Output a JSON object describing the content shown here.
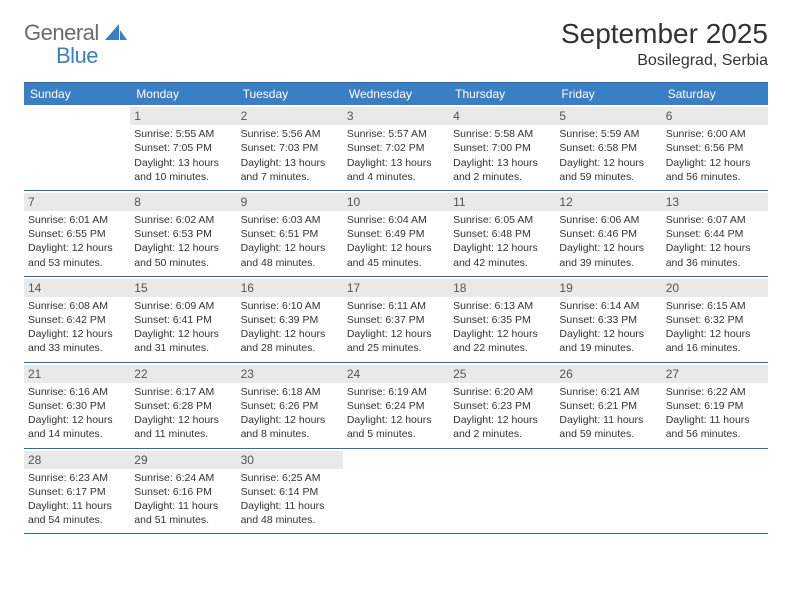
{
  "brand": {
    "text1": "General",
    "text2": "Blue"
  },
  "title": "September 2025",
  "location": "Bosilegrad, Serbia",
  "colors": {
    "header_bg": "#3a7fc4",
    "header_text": "#ffffff",
    "border": "#2e6da4",
    "daynum_bg": "#e9e9e9",
    "body_text": "#333333",
    "logo_gray": "#6b6b6b",
    "logo_blue": "#3a7fc4",
    "page_bg": "#ffffff"
  },
  "typography": {
    "title_fontsize": 28,
    "location_fontsize": 16,
    "weekday_fontsize": 12,
    "cell_fontsize": 10.5,
    "logo_fontsize": 22
  },
  "weekdays": [
    "Sunday",
    "Monday",
    "Tuesday",
    "Wednesday",
    "Thursday",
    "Friday",
    "Saturday"
  ],
  "weeks": [
    [
      {
        "n": "",
        "sunrise": "",
        "sunset": "",
        "daylight": ""
      },
      {
        "n": "1",
        "sunrise": "Sunrise: 5:55 AM",
        "sunset": "Sunset: 7:05 PM",
        "daylight": "Daylight: 13 hours and 10 minutes."
      },
      {
        "n": "2",
        "sunrise": "Sunrise: 5:56 AM",
        "sunset": "Sunset: 7:03 PM",
        "daylight": "Daylight: 13 hours and 7 minutes."
      },
      {
        "n": "3",
        "sunrise": "Sunrise: 5:57 AM",
        "sunset": "Sunset: 7:02 PM",
        "daylight": "Daylight: 13 hours and 4 minutes."
      },
      {
        "n": "4",
        "sunrise": "Sunrise: 5:58 AM",
        "sunset": "Sunset: 7:00 PM",
        "daylight": "Daylight: 13 hours and 2 minutes."
      },
      {
        "n": "5",
        "sunrise": "Sunrise: 5:59 AM",
        "sunset": "Sunset: 6:58 PM",
        "daylight": "Daylight: 12 hours and 59 minutes."
      },
      {
        "n": "6",
        "sunrise": "Sunrise: 6:00 AM",
        "sunset": "Sunset: 6:56 PM",
        "daylight": "Daylight: 12 hours and 56 minutes."
      }
    ],
    [
      {
        "n": "7",
        "sunrise": "Sunrise: 6:01 AM",
        "sunset": "Sunset: 6:55 PM",
        "daylight": "Daylight: 12 hours and 53 minutes."
      },
      {
        "n": "8",
        "sunrise": "Sunrise: 6:02 AM",
        "sunset": "Sunset: 6:53 PM",
        "daylight": "Daylight: 12 hours and 50 minutes."
      },
      {
        "n": "9",
        "sunrise": "Sunrise: 6:03 AM",
        "sunset": "Sunset: 6:51 PM",
        "daylight": "Daylight: 12 hours and 48 minutes."
      },
      {
        "n": "10",
        "sunrise": "Sunrise: 6:04 AM",
        "sunset": "Sunset: 6:49 PM",
        "daylight": "Daylight: 12 hours and 45 minutes."
      },
      {
        "n": "11",
        "sunrise": "Sunrise: 6:05 AM",
        "sunset": "Sunset: 6:48 PM",
        "daylight": "Daylight: 12 hours and 42 minutes."
      },
      {
        "n": "12",
        "sunrise": "Sunrise: 6:06 AM",
        "sunset": "Sunset: 6:46 PM",
        "daylight": "Daylight: 12 hours and 39 minutes."
      },
      {
        "n": "13",
        "sunrise": "Sunrise: 6:07 AM",
        "sunset": "Sunset: 6:44 PM",
        "daylight": "Daylight: 12 hours and 36 minutes."
      }
    ],
    [
      {
        "n": "14",
        "sunrise": "Sunrise: 6:08 AM",
        "sunset": "Sunset: 6:42 PM",
        "daylight": "Daylight: 12 hours and 33 minutes."
      },
      {
        "n": "15",
        "sunrise": "Sunrise: 6:09 AM",
        "sunset": "Sunset: 6:41 PM",
        "daylight": "Daylight: 12 hours and 31 minutes."
      },
      {
        "n": "16",
        "sunrise": "Sunrise: 6:10 AM",
        "sunset": "Sunset: 6:39 PM",
        "daylight": "Daylight: 12 hours and 28 minutes."
      },
      {
        "n": "17",
        "sunrise": "Sunrise: 6:11 AM",
        "sunset": "Sunset: 6:37 PM",
        "daylight": "Daylight: 12 hours and 25 minutes."
      },
      {
        "n": "18",
        "sunrise": "Sunrise: 6:13 AM",
        "sunset": "Sunset: 6:35 PM",
        "daylight": "Daylight: 12 hours and 22 minutes."
      },
      {
        "n": "19",
        "sunrise": "Sunrise: 6:14 AM",
        "sunset": "Sunset: 6:33 PM",
        "daylight": "Daylight: 12 hours and 19 minutes."
      },
      {
        "n": "20",
        "sunrise": "Sunrise: 6:15 AM",
        "sunset": "Sunset: 6:32 PM",
        "daylight": "Daylight: 12 hours and 16 minutes."
      }
    ],
    [
      {
        "n": "21",
        "sunrise": "Sunrise: 6:16 AM",
        "sunset": "Sunset: 6:30 PM",
        "daylight": "Daylight: 12 hours and 14 minutes."
      },
      {
        "n": "22",
        "sunrise": "Sunrise: 6:17 AM",
        "sunset": "Sunset: 6:28 PM",
        "daylight": "Daylight: 12 hours and 11 minutes."
      },
      {
        "n": "23",
        "sunrise": "Sunrise: 6:18 AM",
        "sunset": "Sunset: 6:26 PM",
        "daylight": "Daylight: 12 hours and 8 minutes."
      },
      {
        "n": "24",
        "sunrise": "Sunrise: 6:19 AM",
        "sunset": "Sunset: 6:24 PM",
        "daylight": "Daylight: 12 hours and 5 minutes."
      },
      {
        "n": "25",
        "sunrise": "Sunrise: 6:20 AM",
        "sunset": "Sunset: 6:23 PM",
        "daylight": "Daylight: 12 hours and 2 minutes."
      },
      {
        "n": "26",
        "sunrise": "Sunrise: 6:21 AM",
        "sunset": "Sunset: 6:21 PM",
        "daylight": "Daylight: 11 hours and 59 minutes."
      },
      {
        "n": "27",
        "sunrise": "Sunrise: 6:22 AM",
        "sunset": "Sunset: 6:19 PM",
        "daylight": "Daylight: 11 hours and 56 minutes."
      }
    ],
    [
      {
        "n": "28",
        "sunrise": "Sunrise: 6:23 AM",
        "sunset": "Sunset: 6:17 PM",
        "daylight": "Daylight: 11 hours and 54 minutes."
      },
      {
        "n": "29",
        "sunrise": "Sunrise: 6:24 AM",
        "sunset": "Sunset: 6:16 PM",
        "daylight": "Daylight: 11 hours and 51 minutes."
      },
      {
        "n": "30",
        "sunrise": "Sunrise: 6:25 AM",
        "sunset": "Sunset: 6:14 PM",
        "daylight": "Daylight: 11 hours and 48 minutes."
      },
      {
        "n": "",
        "sunrise": "",
        "sunset": "",
        "daylight": ""
      },
      {
        "n": "",
        "sunrise": "",
        "sunset": "",
        "daylight": ""
      },
      {
        "n": "",
        "sunrise": "",
        "sunset": "",
        "daylight": ""
      },
      {
        "n": "",
        "sunrise": "",
        "sunset": "",
        "daylight": ""
      }
    ]
  ]
}
